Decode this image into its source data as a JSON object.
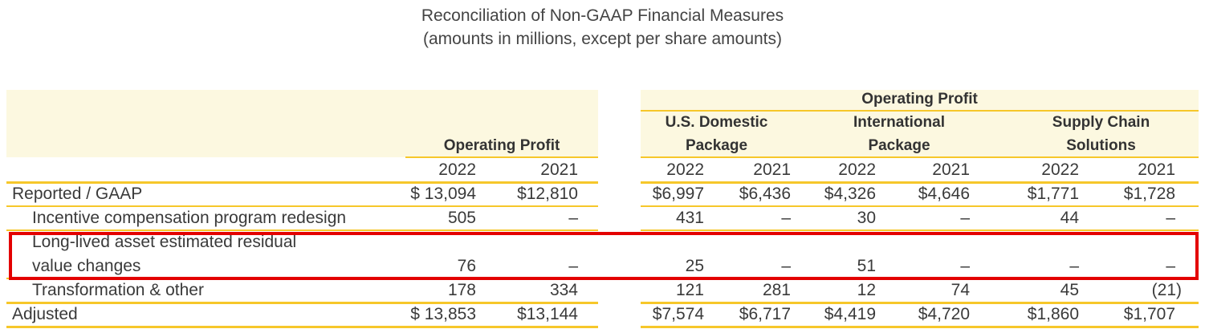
{
  "title": {
    "line1": "Reconciliation of Non-GAAP Financial Measures",
    "line2": "(amounts in millions, except per share amounts)"
  },
  "colors": {
    "header_band": "#fcf8e0",
    "rule": "#f6c72a",
    "highlight_box": "#e30000"
  },
  "left_header": "Operating Profit",
  "right_header": "Operating Profit",
  "segments": [
    {
      "line1": "U.S. Domestic",
      "line2": "Package"
    },
    {
      "line1": "International",
      "line2": "Package"
    },
    {
      "line1": "Supply Chain",
      "line2": "Solutions"
    }
  ],
  "years": [
    "2022",
    "2021",
    "2022",
    "2021",
    "2022",
    "2021",
    "2022",
    "2021"
  ],
  "rows": [
    {
      "label": "Reported / GAAP",
      "indent": false,
      "values": [
        "$ 13,094",
        "$12,810",
        "$6,997",
        "$6,436",
        "$4,326",
        "$4,646",
        "$1,771",
        "$1,728"
      ]
    },
    {
      "label": "Incentive compensation program redesign",
      "indent": true,
      "values": [
        "505",
        "–",
        "431",
        "–",
        "30",
        "–",
        "44",
        "–"
      ]
    },
    {
      "label": "Long-lived asset estimated residual",
      "label2": "value changes",
      "indent": true,
      "highlighted": true,
      "values": [
        "76",
        "–",
        "25",
        "–",
        "51",
        "–",
        "–",
        "–"
      ]
    },
    {
      "label": "Transformation & other",
      "indent": true,
      "values": [
        "178",
        "334",
        "121",
        "281",
        "12",
        "74",
        "45",
        "(21)"
      ]
    },
    {
      "label": "Adjusted",
      "indent": false,
      "values": [
        "$ 13,853",
        "$13,144",
        "$7,574",
        "$6,717",
        "$4,419",
        "$4,720",
        "$1,860",
        "$1,707"
      ]
    }
  ]
}
